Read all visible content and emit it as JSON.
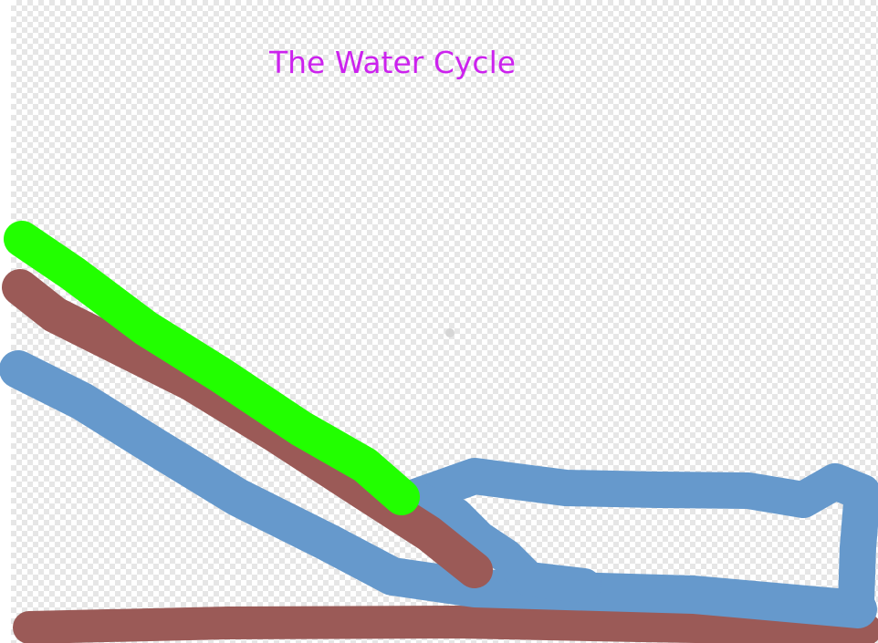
{
  "title": "The Water Cycle"
}
